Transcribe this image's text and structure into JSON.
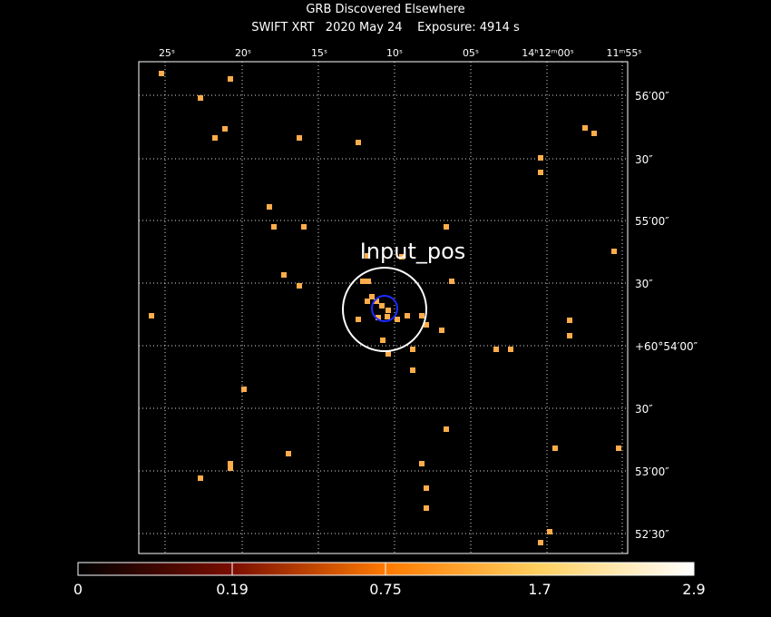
{
  "header": {
    "title": "GRB Discovered Elsewhere",
    "subtitle": "SWIFT XRT   2020 May 24    Exposure: 4914 s"
  },
  "ra_labels": [
    "25ˢ",
    "20ˢ",
    "15ˢ",
    "10ˢ",
    "05ˢ",
    "14ʰ12ᵐ00ˢ",
    "11ᵐ55ˢ"
  ],
  "dec_labels": [
    "56′00″",
    "30″",
    "55′00″",
    "30″",
    "+60°54′00″",
    "30″",
    "53′00″",
    "52′30″"
  ],
  "annotation": "Input_pos",
  "colorbar": {
    "ticks": [
      0,
      0.19,
      0.75,
      1.7,
      2.9
    ]
  }
}
